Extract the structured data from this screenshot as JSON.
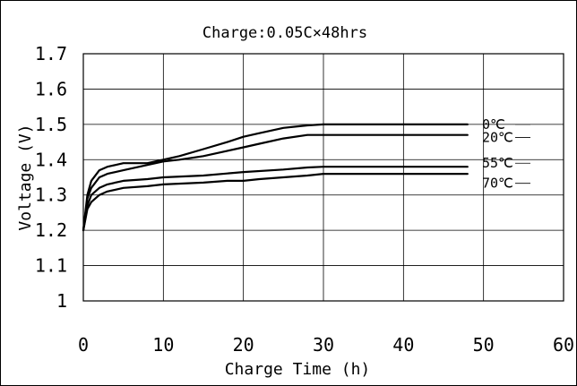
{
  "chart_data": {
    "type": "line",
    "title": "Charge:0.05C×48hrs",
    "xlabel": "Charge Time (h)",
    "ylabel": "Voltage (V)",
    "xlim": [
      0,
      60
    ],
    "ylim": [
      1.0,
      1.7
    ],
    "xticks": [
      0,
      10,
      20,
      30,
      40,
      50,
      60
    ],
    "yticks": [
      1,
      1.1,
      1.2,
      1.3,
      1.4,
      1.5,
      1.6,
      1.7
    ],
    "xtick_labels": [
      "0",
      "10",
      "20",
      "30",
      "40",
      "50",
      "60"
    ],
    "ytick_labels": [
      "1",
      "1.1",
      "1.2",
      "1.3",
      "1.4",
      "1.5",
      "1.6",
      "1.7"
    ],
    "grid": true,
    "legend_placement": "right",
    "series": [
      {
        "name": "0℃",
        "x": [
          0,
          0.5,
          1,
          2,
          3,
          5,
          8,
          10,
          12,
          15,
          18,
          20,
          22,
          25,
          28,
          30,
          35,
          40,
          48
        ],
        "values": [
          1.2,
          1.3,
          1.34,
          1.37,
          1.38,
          1.39,
          1.39,
          1.4,
          1.41,
          1.43,
          1.45,
          1.465,
          1.475,
          1.49,
          1.497,
          1.5,
          1.5,
          1.5,
          1.5
        ]
      },
      {
        "name": "20℃",
        "x": [
          0,
          0.5,
          1,
          2,
          3,
          5,
          8,
          10,
          12,
          15,
          18,
          20,
          22,
          25,
          28,
          30,
          35,
          40,
          48
        ],
        "values": [
          1.2,
          1.29,
          1.32,
          1.35,
          1.36,
          1.37,
          1.385,
          1.395,
          1.4,
          1.41,
          1.425,
          1.435,
          1.445,
          1.46,
          1.47,
          1.47,
          1.47,
          1.47,
          1.47
        ]
      },
      {
        "name": "55℃",
        "x": [
          0,
          0.5,
          1,
          2,
          3,
          5,
          8,
          10,
          15,
          20,
          25,
          28,
          30,
          35,
          40,
          48
        ],
        "values": [
          1.2,
          1.27,
          1.3,
          1.32,
          1.33,
          1.34,
          1.345,
          1.35,
          1.355,
          1.365,
          1.372,
          1.378,
          1.38,
          1.38,
          1.38,
          1.38
        ]
      },
      {
        "name": "70℃",
        "x": [
          0,
          0.5,
          1,
          2,
          3,
          5,
          8,
          10,
          15,
          18,
          20,
          22,
          25,
          28,
          30,
          35,
          40,
          48
        ],
        "values": [
          1.2,
          1.26,
          1.28,
          1.3,
          1.31,
          1.32,
          1.325,
          1.33,
          1.335,
          1.34,
          1.34,
          1.345,
          1.35,
          1.355,
          1.36,
          1.36,
          1.36,
          1.36
        ]
      }
    ]
  }
}
